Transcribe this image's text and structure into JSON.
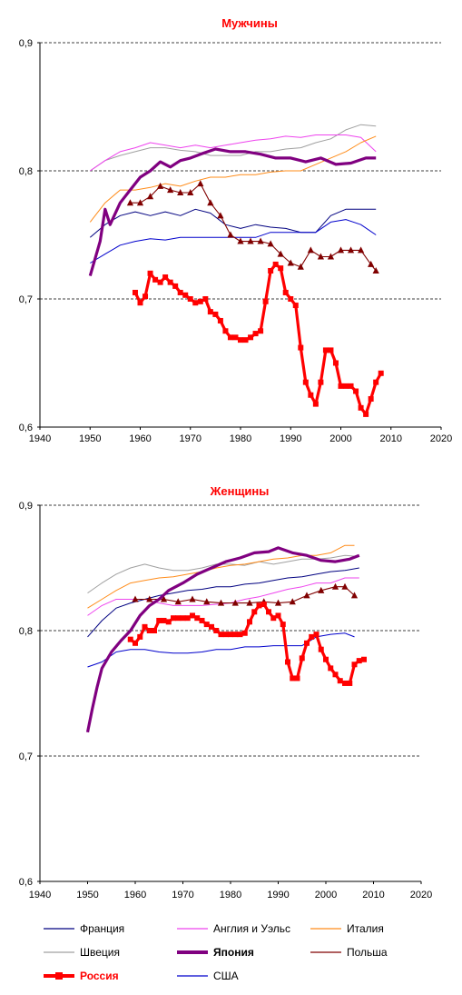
{
  "chart_data": [
    {
      "type": "line",
      "title": "Мужчины",
      "xlabel": "",
      "ylabel": "",
      "xlim": [
        1940,
        2020
      ],
      "ylim": [
        0.6,
        0.9
      ],
      "x_ticks": [
        "1940",
        "1950",
        "1960",
        "1970",
        "1980",
        "1990",
        "2000",
        "2010",
        "2020"
      ],
      "y_ticks": [
        "0,6",
        "0,7",
        "0,8",
        "0,9"
      ],
      "gridlines_y": [
        0.7,
        0.8,
        0.9
      ],
      "series": [
        {
          "name": "Швеция",
          "color": "#a0a0a0",
          "x": [
            1950,
            1953,
            1956,
            1959,
            1962,
            1965,
            1968,
            1971,
            1974,
            1977,
            1980,
            1983,
            1986,
            1989,
            1992,
            1995,
            1998,
            2001,
            2004,
            2007
          ],
          "y": [
            0.8,
            0.808,
            0.812,
            0.815,
            0.818,
            0.818,
            0.816,
            0.815,
            0.812,
            0.812,
            0.812,
            0.815,
            0.815,
            0.817,
            0.818,
            0.822,
            0.825,
            0.832,
            0.836,
            0.835
          ]
        },
        {
          "name": "Англия и Уэльс",
          "color": "#ee44ee",
          "x": [
            1950,
            1953,
            1956,
            1959,
            1962,
            1965,
            1968,
            1971,
            1974,
            1977,
            1980,
            1983,
            1986,
            1989,
            1992,
            1995,
            1998,
            2001,
            2004,
            2007
          ],
          "y": [
            0.8,
            0.808,
            0.815,
            0.818,
            0.822,
            0.82,
            0.818,
            0.82,
            0.818,
            0.82,
            0.822,
            0.824,
            0.825,
            0.827,
            0.826,
            0.828,
            0.828,
            0.828,
            0.826,
            0.815
          ]
        },
        {
          "name": "Италия",
          "color": "#ff8c1a",
          "x": [
            1950,
            1953,
            1956,
            1959,
            1962,
            1965,
            1968,
            1971,
            1974,
            1977,
            1980,
            1983,
            1986,
            1989,
            1992,
            1995,
            1998,
            2001,
            2004,
            2007
          ],
          "y": [
            0.76,
            0.775,
            0.785,
            0.785,
            0.787,
            0.79,
            0.788,
            0.792,
            0.795,
            0.795,
            0.797,
            0.797,
            0.799,
            0.8,
            0.8,
            0.805,
            0.81,
            0.815,
            0.822,
            0.827
          ]
        },
        {
          "name": "Франция",
          "color": "#000080",
          "x": [
            1950,
            1953,
            1956,
            1959,
            1962,
            1965,
            1968,
            1971,
            1974,
            1977,
            1980,
            1983,
            1986,
            1989,
            1992,
            1995,
            1998,
            2001,
            2004,
            2007
          ],
          "y": [
            0.748,
            0.758,
            0.765,
            0.768,
            0.765,
            0.768,
            0.765,
            0.77,
            0.767,
            0.758,
            0.755,
            0.758,
            0.756,
            0.755,
            0.752,
            0.752,
            0.765,
            0.77,
            0.77,
            0.77
          ]
        },
        {
          "name": "США",
          "color": "#0000cc",
          "x": [
            1950,
            1953,
            1956,
            1959,
            1962,
            1965,
            1968,
            1971,
            1974,
            1977,
            1980,
            1983,
            1986,
            1989,
            1992,
            1995,
            1998,
            2001,
            2004,
            2007
          ],
          "y": [
            0.728,
            0.735,
            0.742,
            0.745,
            0.747,
            0.746,
            0.748,
            0.748,
            0.748,
            0.748,
            0.748,
            0.748,
            0.752,
            0.752,
            0.752,
            0.752,
            0.76,
            0.762,
            0.758,
            0.75
          ]
        },
        {
          "name": "Польша",
          "color": "#800000",
          "x": [
            1958,
            1960,
            1962,
            1964,
            1966,
            1968,
            1970,
            1972,
            1974,
            1976,
            1978,
            1980,
            1982,
            1984,
            1986,
            1988,
            1990,
            1992,
            1994,
            1996,
            1998,
            2000,
            2002,
            2004,
            2006,
            2007
          ],
          "y": [
            0.775,
            0.775,
            0.78,
            0.788,
            0.785,
            0.783,
            0.783,
            0.79,
            0.775,
            0.765,
            0.75,
            0.745,
            0.745,
            0.745,
            0.743,
            0.735,
            0.728,
            0.725,
            0.738,
            0.733,
            0.733,
            0.738,
            0.738,
            0.738,
            0.727,
            0.722
          ]
        },
        {
          "name": "Япония",
          "color": "#800080",
          "x": [
            1950,
            1952,
            1953,
            1954,
            1956,
            1958,
            1960,
            1962,
            1964,
            1966,
            1968,
            1970,
            1972,
            1975,
            1978,
            1981,
            1984,
            1987,
            1990,
            1993,
            1996,
            1999,
            2002,
            2005,
            2007
          ],
          "y": [
            0.718,
            0.745,
            0.77,
            0.758,
            0.775,
            0.785,
            0.795,
            0.8,
            0.807,
            0.803,
            0.808,
            0.81,
            0.813,
            0.817,
            0.815,
            0.815,
            0.813,
            0.81,
            0.81,
            0.807,
            0.81,
            0.805,
            0.806,
            0.81,
            0.81
          ]
        },
        {
          "name": "Россия",
          "color": "#ff0000",
          "x": [
            1959,
            1960,
            1961,
            1962,
            1963,
            1964,
            1965,
            1966,
            1967,
            1968,
            1969,
            1970,
            1971,
            1972,
            1973,
            1974,
            1975,
            1976,
            1977,
            1978,
            1979,
            1980,
            1981,
            1982,
            1983,
            1984,
            1985,
            1986,
            1987,
            1988,
            1989,
            1990,
            1991,
            1992,
            1993,
            1994,
            1995,
            1996,
            1997,
            1998,
            1999,
            2000,
            2001,
            2002,
            2003,
            2004,
            2005,
            2006,
            2007,
            2008
          ],
          "y": [
            0.705,
            0.697,
            0.702,
            0.72,
            0.715,
            0.713,
            0.717,
            0.713,
            0.71,
            0.705,
            0.703,
            0.7,
            0.697,
            0.698,
            0.7,
            0.69,
            0.688,
            0.683,
            0.675,
            0.67,
            0.67,
            0.668,
            0.668,
            0.67,
            0.673,
            0.675,
            0.698,
            0.722,
            0.727,
            0.724,
            0.705,
            0.7,
            0.695,
            0.662,
            0.635,
            0.625,
            0.618,
            0.635,
            0.66,
            0.66,
            0.65,
            0.632,
            0.632,
            0.632,
            0.628,
            0.615,
            0.61,
            0.622,
            0.635,
            0.642
          ]
        }
      ]
    },
    {
      "type": "line",
      "title": "Женщины",
      "xlabel": "",
      "ylabel": "",
      "xlim": [
        1940,
        2020
      ],
      "ylim": [
        0.6,
        0.9
      ],
      "x_ticks": [
        "1940",
        "1950",
        "1960",
        "1970",
        "1980",
        "1990",
        "2000",
        "2010",
        "2020"
      ],
      "y_ticks": [
        "0,6",
        "0,7",
        "0,8",
        "0,9"
      ],
      "gridlines_y": [
        0.7,
        0.8,
        0.9
      ],
      "series": [
        {
          "name": "Швеция",
          "color": "#a0a0a0",
          "x": [
            1950,
            1953,
            1956,
            1959,
            1962,
            1965,
            1968,
            1971,
            1974,
            1977,
            1980,
            1983,
            1986,
            1989,
            1992,
            1995,
            1998,
            2001,
            2004,
            2007
          ],
          "y": [
            0.83,
            0.838,
            0.845,
            0.85,
            0.853,
            0.85,
            0.848,
            0.848,
            0.85,
            0.853,
            0.853,
            0.852,
            0.855,
            0.853,
            0.855,
            0.857,
            0.857,
            0.858,
            0.86,
            0.859
          ]
        },
        {
          "name": "Италия",
          "color": "#ff8c1a",
          "x": [
            1950,
            1953,
            1956,
            1959,
            1962,
            1965,
            1968,
            1971,
            1974,
            1977,
            1980,
            1983,
            1986,
            1989,
            1992,
            1995,
            1998,
            2001,
            2004,
            2006
          ],
          "y": [
            0.818,
            0.825,
            0.832,
            0.838,
            0.84,
            0.842,
            0.843,
            0.845,
            0.847,
            0.85,
            0.852,
            0.853,
            0.855,
            0.857,
            0.858,
            0.86,
            0.86,
            0.862,
            0.868,
            0.868
          ]
        },
        {
          "name": "Англия и Уэльс",
          "color": "#ee44ee",
          "x": [
            1950,
            1953,
            1956,
            1959,
            1962,
            1965,
            1968,
            1971,
            1974,
            1977,
            1980,
            1983,
            1986,
            1989,
            1992,
            1995,
            1998,
            2001,
            2004,
            2007
          ],
          "y": [
            0.812,
            0.82,
            0.825,
            0.825,
            0.825,
            0.822,
            0.82,
            0.82,
            0.82,
            0.821,
            0.822,
            0.825,
            0.827,
            0.83,
            0.833,
            0.835,
            0.838,
            0.838,
            0.842,
            0.842
          ]
        },
        {
          "name": "Франция",
          "color": "#000080",
          "x": [
            1950,
            1953,
            1956,
            1959,
            1962,
            1965,
            1968,
            1971,
            1974,
            1977,
            1980,
            1983,
            1986,
            1989,
            1992,
            1995,
            1998,
            2001,
            2004,
            2007
          ],
          "y": [
            0.795,
            0.808,
            0.818,
            0.822,
            0.825,
            0.828,
            0.83,
            0.832,
            0.833,
            0.835,
            0.835,
            0.837,
            0.838,
            0.84,
            0.842,
            0.843,
            0.845,
            0.847,
            0.848,
            0.85
          ]
        },
        {
          "name": "Польша",
          "color": "#800000",
          "x": [
            1960,
            1963,
            1966,
            1969,
            1972,
            1975,
            1978,
            1981,
            1984,
            1987,
            1990,
            1993,
            1996,
            1999,
            2002,
            2004,
            2006
          ],
          "y": [
            0.825,
            0.825,
            0.825,
            0.823,
            0.825,
            0.823,
            0.822,
            0.822,
            0.822,
            0.823,
            0.822,
            0.823,
            0.828,
            0.832,
            0.835,
            0.835,
            0.828
          ]
        },
        {
          "name": "США",
          "color": "#0000cc",
          "x": [
            1950,
            1953,
            1956,
            1959,
            1962,
            1965,
            1968,
            1971,
            1974,
            1977,
            1980,
            1983,
            1986,
            1989,
            1992,
            1995,
            1998,
            2001,
            2004,
            2006
          ],
          "y": [
            0.771,
            0.775,
            0.783,
            0.785,
            0.785,
            0.783,
            0.782,
            0.782,
            0.783,
            0.785,
            0.785,
            0.787,
            0.787,
            0.788,
            0.788,
            0.788,
            0.795,
            0.797,
            0.798,
            0.795
          ]
        },
        {
          "name": "Япония",
          "color": "#800080",
          "x": [
            1950,
            1951,
            1952,
            1953,
            1955,
            1957,
            1959,
            1961,
            1963,
            1965,
            1967,
            1970,
            1973,
            1976,
            1979,
            1982,
            1985,
            1988,
            1990,
            1993,
            1996,
            1999,
            2002,
            2005,
            2007
          ],
          "y": [
            0.719,
            0.738,
            0.755,
            0.77,
            0.783,
            0.792,
            0.8,
            0.812,
            0.82,
            0.825,
            0.832,
            0.838,
            0.845,
            0.85,
            0.855,
            0.858,
            0.862,
            0.863,
            0.866,
            0.862,
            0.86,
            0.856,
            0.855,
            0.857,
            0.86
          ]
        },
        {
          "name": "Россия",
          "color": "#ff0000",
          "x": [
            1959,
            1960,
            1961,
            1962,
            1963,
            1964,
            1965,
            1966,
            1967,
            1968,
            1969,
            1970,
            1971,
            1972,
            1973,
            1974,
            1975,
            1976,
            1977,
            1978,
            1979,
            1980,
            1981,
            1982,
            1983,
            1984,
            1985,
            1986,
            1987,
            1988,
            1989,
            1990,
            1991,
            1992,
            1993,
            1994,
            1995,
            1996,
            1997,
            1998,
            1999,
            2000,
            2001,
            2002,
            2003,
            2004,
            2005,
            2006,
            2007,
            2008
          ],
          "y": [
            0.793,
            0.79,
            0.795,
            0.803,
            0.8,
            0.8,
            0.808,
            0.808,
            0.807,
            0.81,
            0.81,
            0.81,
            0.81,
            0.812,
            0.81,
            0.808,
            0.805,
            0.803,
            0.8,
            0.797,
            0.797,
            0.797,
            0.797,
            0.797,
            0.798,
            0.807,
            0.815,
            0.82,
            0.821,
            0.815,
            0.81,
            0.812,
            0.805,
            0.775,
            0.762,
            0.762,
            0.778,
            0.79,
            0.795,
            0.797,
            0.785,
            0.777,
            0.77,
            0.765,
            0.76,
            0.758,
            0.758,
            0.773,
            0.776,
            0.777
          ]
        }
      ]
    }
  ],
  "legend": {
    "items": [
      {
        "label": "Франция",
        "color": "#000080",
        "style": "thin"
      },
      {
        "label": "Англия и Уэльс",
        "color": "#ee44ee",
        "style": "thin"
      },
      {
        "label": "Италия",
        "color": "#ff8c1a",
        "style": "thin"
      },
      {
        "label": "Швеция",
        "color": "#a0a0a0",
        "style": "thin"
      },
      {
        "label": "Япония",
        "color": "#800080",
        "style": "thick"
      },
      {
        "label": "Польша",
        "color": "#800000",
        "style": "thin"
      },
      {
        "label": "Россия",
        "color": "#ff0000",
        "style": "thick-square"
      },
      {
        "label": "США",
        "color": "#0000cc",
        "style": "thin"
      }
    ]
  }
}
